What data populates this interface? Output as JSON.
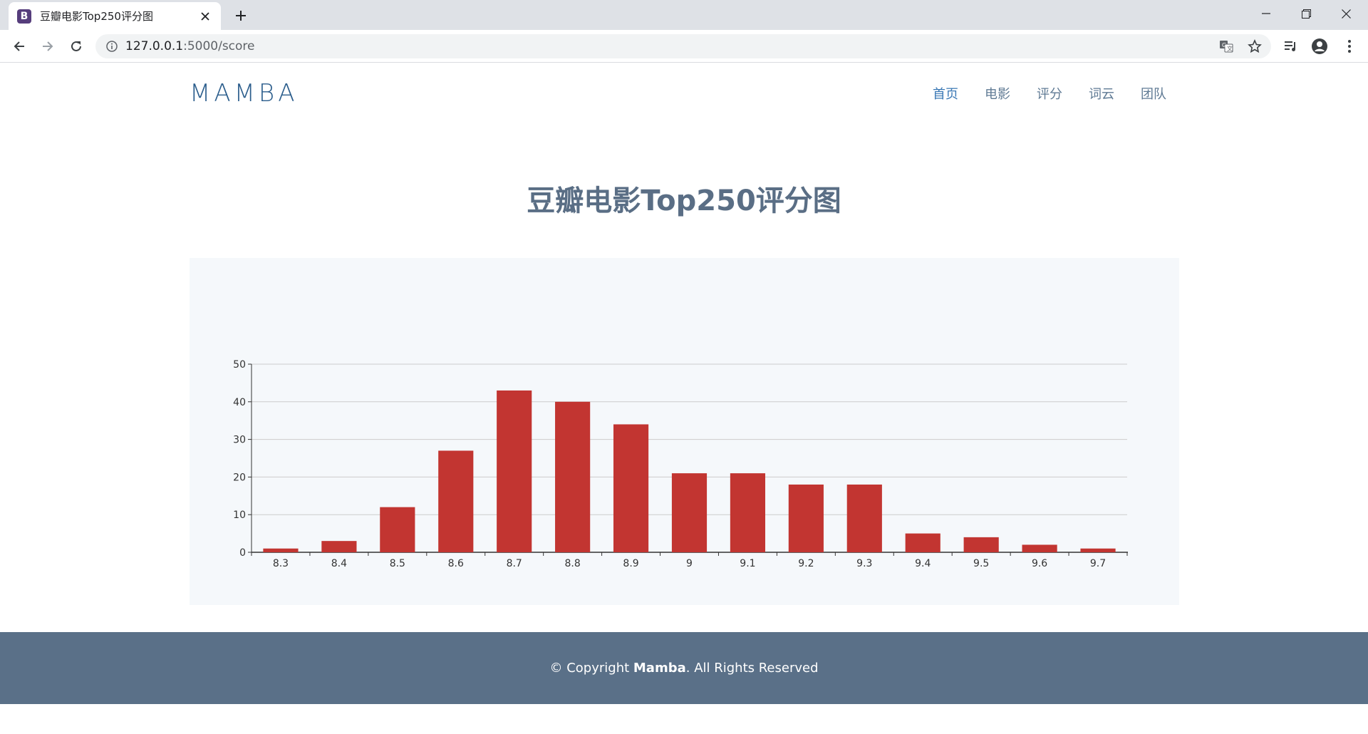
{
  "browser": {
    "tab_title": "豆瓣电影Top250评分图",
    "favicon_letter": "B",
    "url_host": "127.0.0.1",
    "url_path": ":5000/score",
    "icons": [
      "back-icon",
      "forward-icon",
      "reload-icon",
      "info-icon",
      "translate-icon",
      "star-icon",
      "media-icon",
      "profile-icon",
      "menu-icon"
    ]
  },
  "header": {
    "brand": "MAMBA",
    "nav": [
      {
        "label": "首页"
      },
      {
        "label": "电影"
      },
      {
        "label": "评分"
      },
      {
        "label": "词云"
      },
      {
        "label": "团队"
      }
    ]
  },
  "main": {
    "title": "豆瓣电影Top250评分图"
  },
  "chart_data": {
    "type": "bar",
    "categories": [
      "8.3",
      "8.4",
      "8.5",
      "8.6",
      "8.7",
      "8.8",
      "8.9",
      "9",
      "9.1",
      "9.2",
      "9.3",
      "9.4",
      "9.5",
      "9.6",
      "9.7"
    ],
    "values": [
      1,
      3,
      12,
      27,
      43,
      40,
      34,
      21,
      21,
      18,
      18,
      5,
      4,
      2,
      1
    ],
    "ylim": [
      0,
      50
    ],
    "yticks": [
      0,
      10,
      20,
      30,
      40,
      50
    ],
    "grid": true,
    "bar_color": "#c23531"
  },
  "footer": {
    "prefix": "© Copyright ",
    "brand": "Mamba",
    "suffix": ". All Rights Reserved"
  },
  "colors": {
    "accent": "#3a78b5",
    "footer_bg": "#5a7088",
    "chart_bg": "#f5f8fb"
  }
}
